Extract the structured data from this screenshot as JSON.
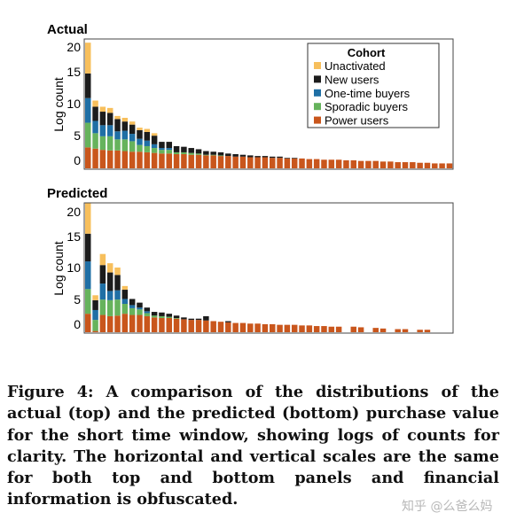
{
  "caption": "Figure 4: A comparison of the distributions of the actual (top) and the predicted (bottom) purchase value for the short time window, showing logs of counts for clarity. The horizontal and vertical scales are the same for both top and bottom panels and financial information is obfuscated.",
  "watermark": "知乎 @么爸么妈",
  "legend": {
    "title": "Cohort",
    "items": [
      {
        "label": "Unactivated",
        "color": "#f7bf5c"
      },
      {
        "label": "New users",
        "color": "#1c1c1c"
      },
      {
        "label": "One-time buyers",
        "color": "#1f6fa5"
      },
      {
        "label": "Sporadic buyers",
        "color": "#66b35c"
      },
      {
        "label": "Power users",
        "color": "#c9561c"
      }
    ]
  },
  "chart_data": [
    {
      "type": "bar",
      "stacked": true,
      "title": "Actual",
      "ylabel": "Log count",
      "ylim": [
        0,
        21
      ],
      "yticks": [
        "0",
        "5",
        "10",
        "15",
        "20"
      ],
      "grid": false,
      "legend_position": "top-right",
      "series": [
        {
          "name": "Power users",
          "values": [
            3.4,
            3.2,
            3.0,
            2.9,
            2.9,
            2.8,
            2.7,
            2.7,
            2.6,
            2.5,
            2.4,
            2.4,
            2.3,
            2.3,
            2.2,
            2.2,
            2.1,
            2.1,
            2.0,
            2.0,
            1.9,
            1.9,
            1.8,
            1.8,
            1.8,
            1.7,
            1.7,
            1.6,
            1.6,
            1.6,
            1.5,
            1.5,
            1.4,
            1.4,
            1.4,
            1.3,
            1.3,
            1.2,
            1.2,
            1.2,
            1.1,
            1.1,
            1.0,
            1.0,
            1.0,
            0.9,
            0.9,
            0.8,
            0.8,
            0.8
          ]
        },
        {
          "name": "Sporadic buyers",
          "values": [
            4.0,
            2.5,
            2.2,
            2.3,
            1.8,
            1.9,
            1.7,
            1.1,
            1.0,
            0.8,
            0.6,
            0.6,
            0.3,
            0.3,
            0.3,
            0.2,
            0.1,
            0.1,
            0.1,
            0,
            0,
            0,
            0,
            0,
            0,
            0,
            0,
            0,
            0,
            0,
            0,
            0,
            0,
            0,
            0,
            0,
            0,
            0,
            0,
            0,
            0,
            0,
            0,
            0,
            0,
            0,
            0,
            0,
            0,
            0
          ]
        },
        {
          "name": "One-time buyers",
          "values": [
            4.0,
            2.0,
            1.8,
            1.8,
            1.3,
            1.4,
            1.2,
            1.0,
            0.9,
            0.6,
            0.3,
            0.3,
            0,
            0,
            0,
            0,
            0,
            0,
            0,
            0,
            0,
            0,
            0,
            0,
            0,
            0,
            0,
            0,
            0,
            0,
            0,
            0,
            0,
            0,
            0,
            0,
            0,
            0,
            0,
            0,
            0,
            0,
            0,
            0,
            0,
            0,
            0,
            0,
            0,
            0
          ]
        },
        {
          "name": "New users",
          "values": [
            4.0,
            2.3,
            2.2,
            2.0,
            2.0,
            1.5,
            1.5,
            1.4,
            1.4,
            1.4,
            1.0,
            1.0,
            1.0,
            0.9,
            0.8,
            0.7,
            0.6,
            0.5,
            0.5,
            0.4,
            0.4,
            0.3,
            0.3,
            0.2,
            0.2,
            0.2,
            0.2,
            0.1,
            0.1,
            0,
            0,
            0,
            0,
            0,
            0,
            0,
            0,
            0,
            0,
            0,
            0,
            0,
            0,
            0,
            0,
            0,
            0,
            0,
            0,
            0
          ]
        },
        {
          "name": "Unactivated",
          "values": [
            5.0,
            1.0,
            0.8,
            0.8,
            0.5,
            0.6,
            0.5,
            0.4,
            0.5,
            0.4,
            0,
            0,
            0,
            0,
            0,
            0,
            0,
            0,
            0,
            0,
            0,
            0,
            0,
            0,
            0,
            0,
            0,
            0,
            0,
            0,
            0,
            0,
            0,
            0,
            0,
            0,
            0,
            0,
            0,
            0,
            0,
            0,
            0,
            0,
            0,
            0,
            0,
            0,
            0,
            0
          ]
        }
      ]
    },
    {
      "type": "bar",
      "stacked": true,
      "title": "Predicted",
      "ylabel": "Log count",
      "ylim": [
        0,
        21
      ],
      "yticks": [
        "0",
        "5",
        "10",
        "15",
        "20"
      ],
      "grid": false,
      "series": [
        {
          "name": "Power users",
          "values": [
            3.0,
            0.2,
            2.8,
            2.6,
            2.7,
            3.0,
            2.8,
            2.8,
            2.6,
            2.4,
            2.3,
            2.3,
            2.2,
            2.1,
            2.0,
            2.0,
            1.9,
            1.8,
            1.7,
            1.6,
            1.5,
            1.5,
            1.4,
            1.4,
            1.3,
            1.3,
            1.2,
            1.2,
            1.2,
            1.1,
            1.1,
            1.0,
            1.0,
            0.9,
            0.9,
            0,
            0.9,
            0.8,
            0,
            0.7,
            0.6,
            0,
            0.5,
            0.5,
            0,
            0.4,
            0.4,
            0,
            0,
            0
          ]
        },
        {
          "name": "Sporadic buyers",
          "values": [
            4.0,
            1.8,
            2.5,
            2.6,
            2.6,
            1.6,
            1.1,
            0.9,
            0.5,
            0.3,
            0.3,
            0.2,
            0.1,
            0,
            0,
            0,
            0,
            0,
            0,
            0,
            0,
            0,
            0,
            0,
            0,
            0,
            0,
            0,
            0,
            0,
            0,
            0,
            0,
            0,
            0,
            0,
            0,
            0,
            0,
            0,
            0,
            0,
            0,
            0,
            0,
            0,
            0,
            0,
            0,
            0
          ]
        },
        {
          "name": "One-time buyers",
          "values": [
            4.5,
            1.6,
            2.6,
            1.5,
            1.5,
            0.8,
            0.5,
            0.3,
            0.3,
            0,
            0,
            0,
            0,
            0,
            0,
            0,
            0,
            0,
            0,
            0,
            0,
            0,
            0,
            0,
            0,
            0,
            0,
            0,
            0,
            0,
            0,
            0,
            0,
            0,
            0,
            0,
            0,
            0,
            0,
            0,
            0,
            0,
            0,
            0,
            0,
            0,
            0,
            0,
            0,
            0
          ]
        },
        {
          "name": "New users",
          "values": [
            4.5,
            1.6,
            3.0,
            3.0,
            2.5,
            1.5,
            1.0,
            0.8,
            0.6,
            0.6,
            0.6,
            0.5,
            0.4,
            0.3,
            0.2,
            0.2,
            0.7,
            0,
            0,
            0.2,
            0,
            0,
            0,
            0,
            0,
            0,
            0,
            0,
            0,
            0,
            0,
            0,
            0,
            0,
            0,
            0,
            0,
            0,
            0,
            0,
            0,
            0,
            0,
            0,
            0,
            0,
            0,
            0,
            0,
            0
          ]
        },
        {
          "name": "Unactivated",
          "values": [
            5.0,
            0.8,
            1.8,
            1.5,
            1.2,
            0.6,
            0,
            0,
            0,
            0,
            0,
            0,
            0,
            0,
            0,
            0,
            0,
            0,
            0,
            0,
            0,
            0,
            0,
            0,
            0,
            0,
            0,
            0,
            0,
            0,
            0,
            0,
            0,
            0,
            0,
            0,
            0,
            0,
            0,
            0,
            0,
            0,
            0,
            0,
            0,
            0,
            0,
            0,
            0,
            0
          ]
        }
      ]
    }
  ]
}
